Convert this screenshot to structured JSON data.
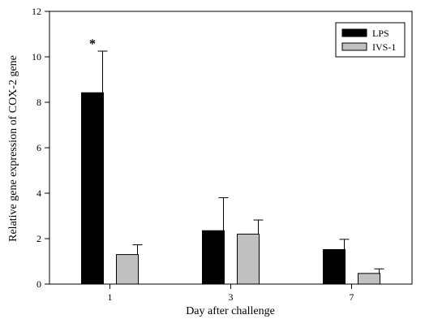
{
  "chart_data": {
    "type": "bar",
    "xlabel": "Day after challenge",
    "ylabel": "Relative gene expression of COX-2 gene",
    "categories": [
      "1",
      "3",
      "7"
    ],
    "ylim": [
      0,
      12
    ],
    "yticks": [
      0,
      2,
      4,
      6,
      8,
      10,
      12
    ],
    "grid": false,
    "legend_position": "top-right",
    "series": [
      {
        "name": "LPS",
        "color": "#000000",
        "values": [
          8.42,
          2.35,
          1.52
        ],
        "errors": [
          1.83,
          1.45,
          0.45
        ]
      },
      {
        "name": "IVS-1",
        "color": "#c0c0c0",
        "values": [
          1.3,
          2.2,
          0.47
        ],
        "errors": [
          0.43,
          0.62,
          0.2
        ]
      }
    ],
    "annotations": [
      {
        "text": "*",
        "category": "1",
        "series": "LPS"
      }
    ]
  }
}
